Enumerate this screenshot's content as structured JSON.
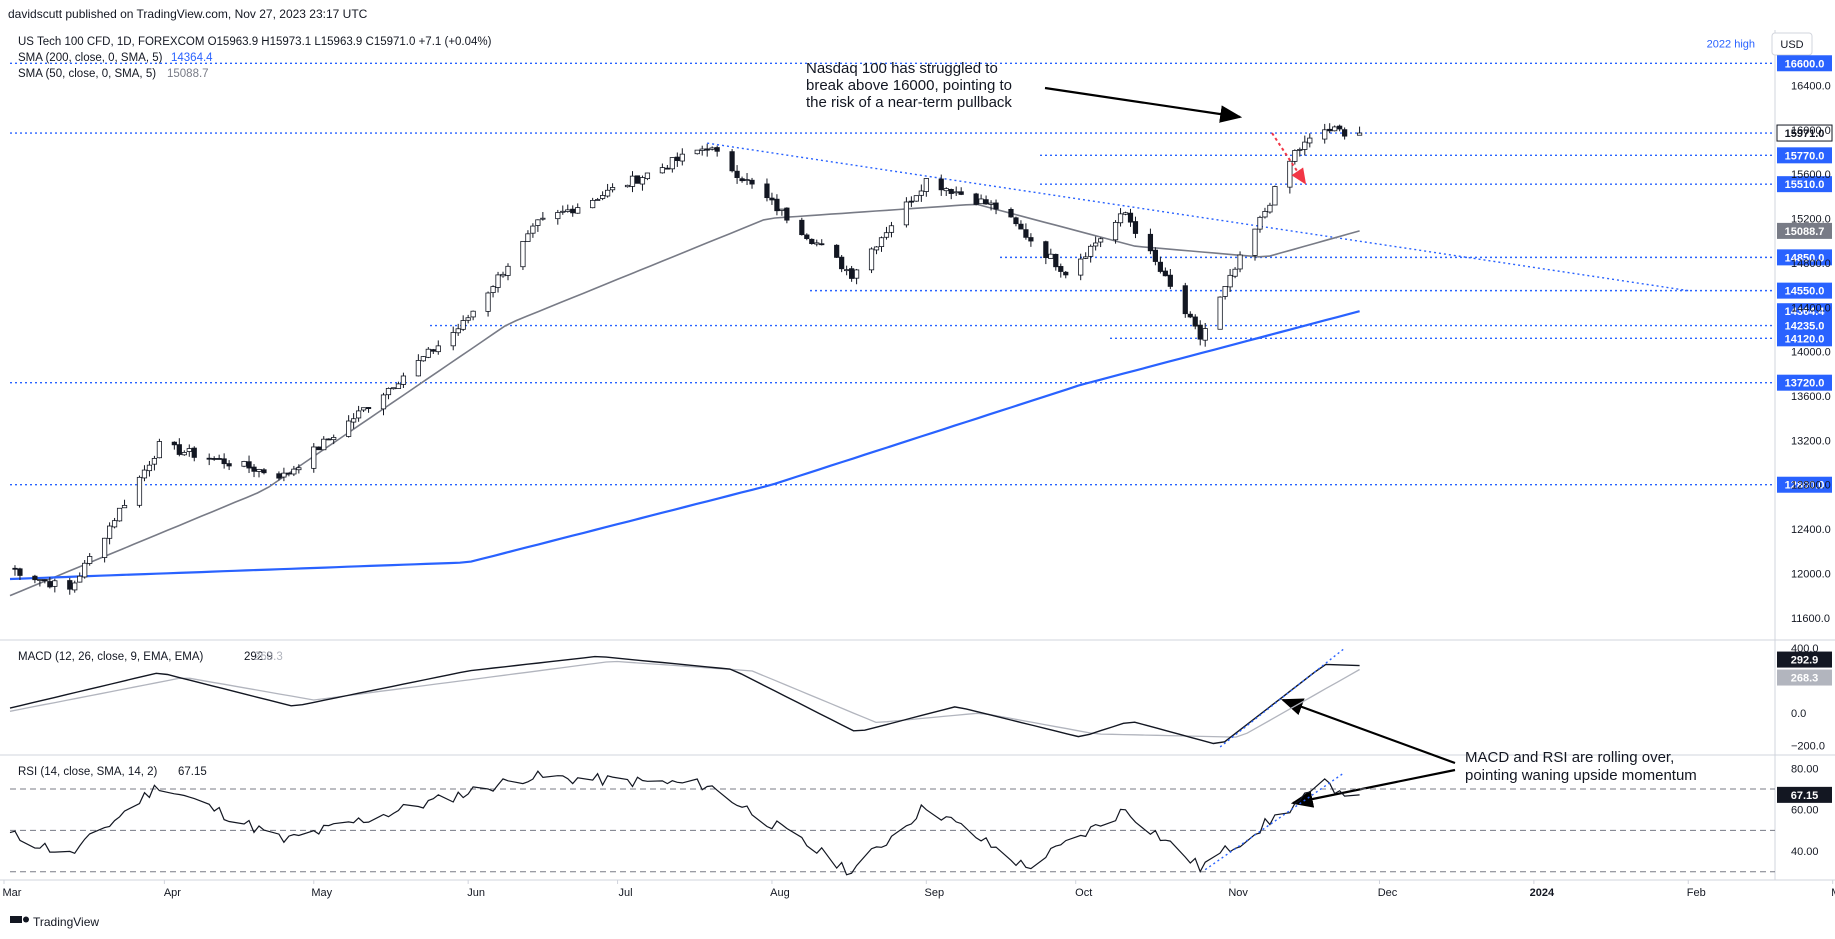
{
  "header": {
    "publish_line": "davidscutt published on TradingView.com, Nov 27, 2023 23:17 UTC",
    "symbol_line": "US Tech 100 CFD, 1D, FOREXCOM  O15963.9  H15973.1  L15963.9  C15971.0  +7.1 (+0.04%)",
    "sma200_label": "SMA (200, close, 0, SMA, 5)",
    "sma200_value": "14364.4",
    "sma50_label": "SMA (50, close, 0, SMA, 5)",
    "sma50_value": "15088.7",
    "currency": "USD"
  },
  "footer": {
    "brand": "TradingView"
  },
  "colors": {
    "up": "#ffffff",
    "down": "#131722",
    "sma200": "#2962ff",
    "sma50": "#787b86",
    "level": "#2962ff",
    "macd": "#131722",
    "signal": "#b2b5be",
    "annotation": "#000000",
    "arrow_red": "#f23645"
  },
  "chart_data": [
    {
      "type": "candlestick",
      "title": "US Tech 100 CFD, 1D, FOREXCOM",
      "ylim": [
        11400,
        16900
      ],
      "price_ticks": [
        "16400.0",
        "16000.0",
        "15600.0",
        "15200.0",
        "14800.0",
        "14400.0",
        "14000.0",
        "13600.0",
        "13200.0",
        "12800.0",
        "12400.0",
        "12000.0",
        "11600.0"
      ],
      "x_ticks": [
        "Mar",
        "Apr",
        "May",
        "Jun",
        "Jul",
        "Aug",
        "Sep",
        "Oct",
        "Nov",
        "Dec",
        "2024",
        "Feb",
        "Mar"
      ],
      "levels": [
        {
          "price": 16600.0,
          "label": "16600.0",
          "note": "2022 high"
        },
        {
          "price": 15971.0,
          "label": "15971.0"
        },
        {
          "price": 15770.0,
          "label": "15770.0"
        },
        {
          "price": 15510.0,
          "label": "15510.0"
        },
        {
          "price": 14850.0,
          "label": "14850.0"
        },
        {
          "price": 14550.0,
          "label": "14550.0"
        },
        {
          "price": 14235.0,
          "label": "14235.0"
        },
        {
          "price": 14120.0,
          "label": "14120.0"
        },
        {
          "price": 13720.0,
          "label": "13720.0"
        },
        {
          "price": 12800.0,
          "label": "12800.0"
        }
      ],
      "ma_labels": [
        {
          "name": "SMA 50",
          "label": "15088.7"
        },
        {
          "name": "SMA 200",
          "label": "14364.4"
        }
      ],
      "close_key_points": [
        {
          "date": "2023-03-01",
          "close": 12050
        },
        {
          "date": "2023-03-13",
          "close": 11850
        },
        {
          "date": "2023-03-31",
          "close": 13150
        },
        {
          "date": "2023-04-25",
          "close": 12880
        },
        {
          "date": "2023-05-05",
          "close": 13250
        },
        {
          "date": "2023-05-31",
          "close": 14250
        },
        {
          "date": "2023-06-15",
          "close": 15150
        },
        {
          "date": "2023-07-19",
          "close": 15850
        },
        {
          "date": "2023-08-17",
          "close": 14700
        },
        {
          "date": "2023-09-01",
          "close": 15550
        },
        {
          "date": "2023-09-15",
          "close": 15300
        },
        {
          "date": "2023-09-29",
          "close": 14720
        },
        {
          "date": "2023-10-11",
          "close": 15250
        },
        {
          "date": "2023-10-26",
          "close": 14120
        },
        {
          "date": "2023-11-14",
          "close": 15800
        },
        {
          "date": "2023-11-20",
          "close": 16000
        },
        {
          "date": "2023-11-27",
          "close": 15971
        }
      ],
      "sma50_key_points": [
        {
          "date": "2023-03-01",
          "value": 11800
        },
        {
          "date": "2023-04-21",
          "value": 12750
        },
        {
          "date": "2023-06-09",
          "value": 14250
        },
        {
          "date": "2023-07-31",
          "value": 15200
        },
        {
          "date": "2023-09-11",
          "value": 15330
        },
        {
          "date": "2023-10-13",
          "value": 14950
        },
        {
          "date": "2023-11-08",
          "value": 14850
        },
        {
          "date": "2023-11-27",
          "value": 15088.7
        }
      ],
      "sma200_key_points": [
        {
          "date": "2023-03-01",
          "value": 11950
        },
        {
          "date": "2023-06-01",
          "value": 12100
        },
        {
          "date": "2023-08-01",
          "value": 12800
        },
        {
          "date": "2023-10-02",
          "value": 13700
        },
        {
          "date": "2023-11-27",
          "value": 14364.4
        }
      ],
      "trendlines": [
        {
          "from": {
            "date": "2023-07-19",
            "price": 15880
          },
          "to": {
            "date": "2024-02-01",
            "price": 14550
          }
        }
      ],
      "annotations": [
        {
          "text": [
            "Nasdaq 100 has struggled to",
            "break above 16000, pointing to",
            "the risk of a near-term pullback"
          ]
        }
      ]
    },
    {
      "type": "line",
      "title": "MACD (12, 26, close, 9, EMA, EMA)",
      "ylim": [
        -260,
        420
      ],
      "ticks": [
        "400.0",
        "0.0",
        "−200.0"
      ],
      "series": [
        {
          "name": "MACD",
          "label": "292.9",
          "key_points": [
            {
              "date": "2023-03-01",
              "value": 30
            },
            {
              "date": "2023-03-31",
              "value": 250
            },
            {
              "date": "2023-04-27",
              "value": 40
            },
            {
              "date": "2023-06-01",
              "value": 260
            },
            {
              "date": "2023-06-27",
              "value": 350
            },
            {
              "date": "2023-07-24",
              "value": 270
            },
            {
              "date": "2023-08-18",
              "value": -120
            },
            {
              "date": "2023-09-07",
              "value": 40
            },
            {
              "date": "2023-10-02",
              "value": -150
            },
            {
              "date": "2023-10-12",
              "value": -50
            },
            {
              "date": "2023-10-30",
              "value": -200
            },
            {
              "date": "2023-11-20",
              "value": 300
            },
            {
              "date": "2023-11-27",
              "value": 292.9
            }
          ]
        },
        {
          "name": "Signal",
          "label": "268.3",
          "key_points": [
            {
              "date": "2023-03-01",
              "value": 10
            },
            {
              "date": "2023-04-05",
              "value": 220
            },
            {
              "date": "2023-05-01",
              "value": 80
            },
            {
              "date": "2023-06-30",
              "value": 320
            },
            {
              "date": "2023-07-28",
              "value": 260
            },
            {
              "date": "2023-08-22",
              "value": -60
            },
            {
              "date": "2023-09-12",
              "value": 0
            },
            {
              "date": "2023-10-05",
              "value": -130
            },
            {
              "date": "2023-11-03",
              "value": -150
            },
            {
              "date": "2023-11-27",
              "value": 268.3
            }
          ]
        }
      ]
    },
    {
      "type": "line",
      "title": "RSI (14, close, SMA, 14, 2)",
      "ylim": [
        26,
        84
      ],
      "ticks": [
        "80.00",
        "60.00",
        "40.00"
      ],
      "bands": [
        70,
        50,
        30
      ],
      "series": [
        {
          "name": "RSI",
          "label": "67.15",
          "key_points": [
            {
              "date": "2023-03-01",
              "value": 48
            },
            {
              "date": "2023-03-13",
              "value": 38
            },
            {
              "date": "2023-03-31",
              "value": 72
            },
            {
              "date": "2023-04-25",
              "value": 45
            },
            {
              "date": "2023-06-13",
              "value": 76
            },
            {
              "date": "2023-07-19",
              "value": 72
            },
            {
              "date": "2023-08-17",
              "value": 30
            },
            {
              "date": "2023-09-01",
              "value": 62
            },
            {
              "date": "2023-09-21",
              "value": 32
            },
            {
              "date": "2023-10-11",
              "value": 60
            },
            {
              "date": "2023-10-26",
              "value": 32
            },
            {
              "date": "2023-11-20",
              "value": 72
            },
            {
              "date": "2023-11-27",
              "value": 67.15
            }
          ]
        }
      ],
      "annotations": [
        {
          "text": [
            "MACD and RSI are rolling over,",
            "pointing waning upside momentum"
          ]
        }
      ]
    }
  ]
}
